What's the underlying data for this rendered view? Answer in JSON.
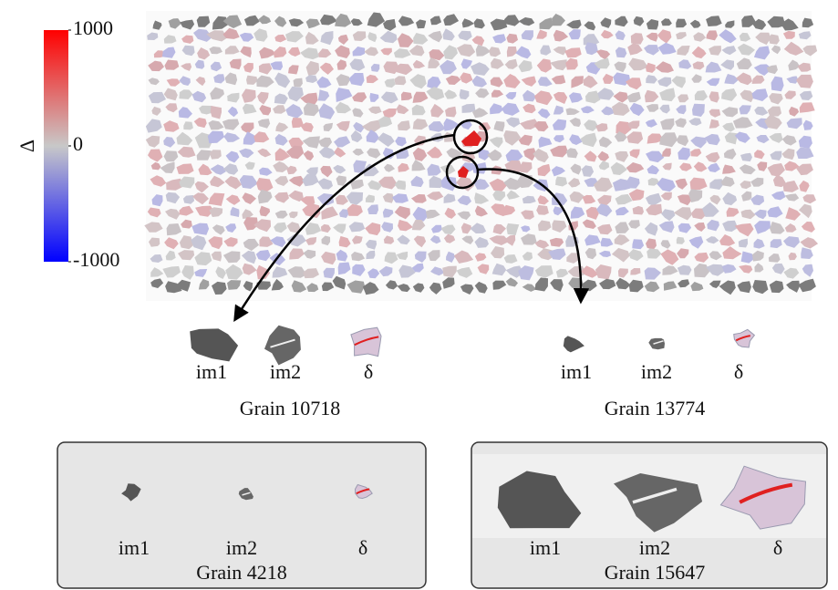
{
  "colorbar": {
    "label": "Δ",
    "lim": [
      -1000,
      1000
    ],
    "ticks": [
      -1000,
      0,
      1000
    ]
  },
  "grains": [
    {
      "title": "Grain 10718",
      "images": [
        "im1",
        "im2",
        "δ"
      ]
    },
    {
      "title": "Grain 13774",
      "images": [
        "im1",
        "im2",
        "δ"
      ]
    },
    {
      "title": "Grain 4218",
      "images": [
        "im1",
        "im2",
        "δ"
      ]
    },
    {
      "title": "Grain 15647",
      "images": [
        "im1",
        "im2",
        "δ"
      ]
    }
  ]
}
